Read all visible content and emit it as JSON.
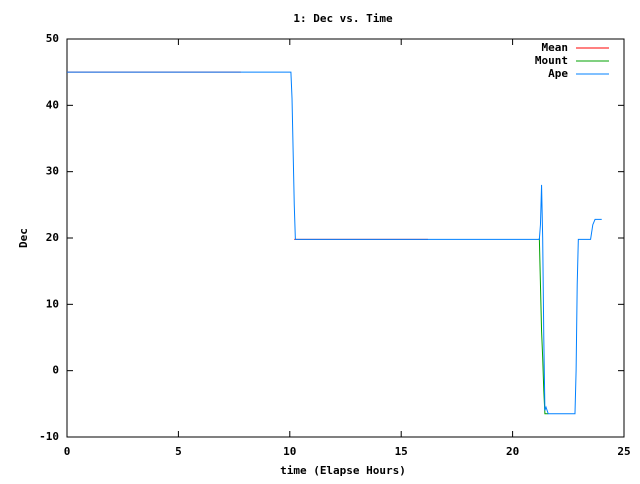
{
  "chart_data": {
    "type": "line",
    "title": "1: Dec vs. Time",
    "x_label": "time (Elapse Hours)",
    "y_label": "Dec",
    "xlim": [
      0,
      25
    ],
    "xticks": [
      0,
      5,
      10,
      15,
      20,
      25
    ],
    "ylim": [
      -10,
      50
    ],
    "yticks": [
      -10,
      0,
      10,
      20,
      30,
      40,
      50
    ],
    "grid": false,
    "legend": "top-right",
    "series": [
      {
        "name": "Mean",
        "color": "#ff0000",
        "x": [
          0,
          7.8,
          7.8,
          10.2,
          16.2
        ],
        "values": [
          45,
          45,
          null,
          19.8,
          19.8
        ]
      },
      {
        "name": "Mount",
        "color": "#00a000",
        "x": [
          21.2,
          21.3,
          21.35,
          21.4,
          21.45,
          21.6
        ],
        "values": [
          20,
          6,
          2,
          -3,
          -6.5,
          -6.5
        ]
      },
      {
        "name": "Ape",
        "color": "#0080ff",
        "x": [
          0,
          10.05,
          10.1,
          10.15,
          10.2,
          10.25,
          21.2,
          21.25,
          21.3,
          21.35,
          21.4,
          21.45,
          21.5,
          21.6,
          22.8,
          22.85,
          22.9,
          22.95,
          23.5,
          23.6,
          23.7,
          24
        ],
        "values": [
          45,
          45,
          41,
          33,
          25,
          19.8,
          19.8,
          22,
          28,
          20,
          5,
          -6,
          -5.5,
          -6.5,
          -6.5,
          0,
          13,
          19.8,
          19.8,
          22,
          22.8,
          22.8
        ]
      }
    ]
  }
}
